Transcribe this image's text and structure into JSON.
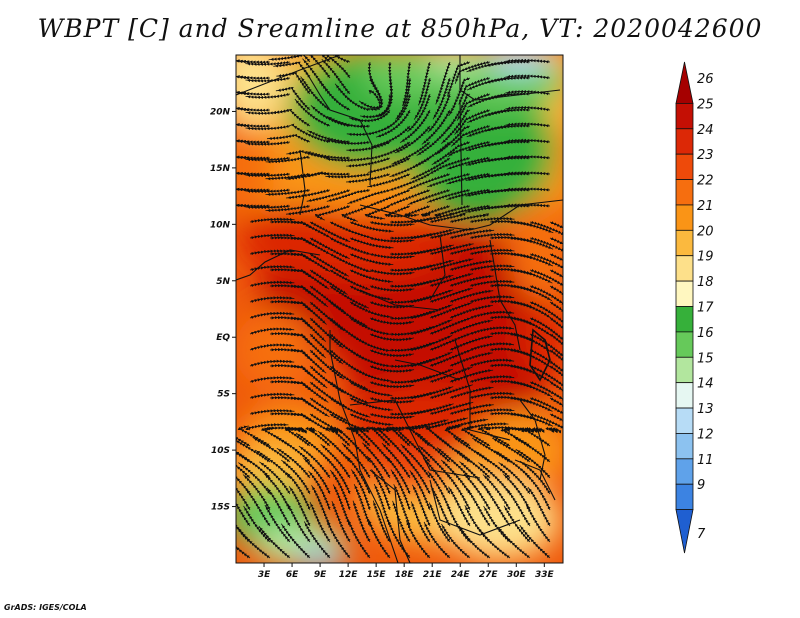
{
  "title": "WBPT [C] and Sreamline at 850hPa, VT: 2020042600",
  "credit": "GrADS: IGES/COLA",
  "map": {
    "lon_range": [
      0,
      35
    ],
    "lat_range": [
      -20,
      25
    ],
    "lat_ticks": [
      {
        "value": 20,
        "label": "20N"
      },
      {
        "value": 15,
        "label": "15N"
      },
      {
        "value": 10,
        "label": "10N"
      },
      {
        "value": 5,
        "label": "5N"
      },
      {
        "value": 0,
        "label": "EQ"
      },
      {
        "value": -5,
        "label": "5S"
      },
      {
        "value": -10,
        "label": "10S"
      },
      {
        "value": -15,
        "label": "15S"
      }
    ],
    "lon_ticks": [
      {
        "value": 3,
        "label": "3E"
      },
      {
        "value": 6,
        "label": "6E"
      },
      {
        "value": 9,
        "label": "9E"
      },
      {
        "value": 12,
        "label": "12E"
      },
      {
        "value": 15,
        "label": "15E"
      },
      {
        "value": 18,
        "label": "18E"
      },
      {
        "value": 21,
        "label": "21E"
      },
      {
        "value": 24,
        "label": "24E"
      },
      {
        "value": 27,
        "label": "27E"
      },
      {
        "value": 30,
        "label": "30E"
      },
      {
        "value": 33,
        "label": "33E"
      }
    ]
  },
  "colorbar": {
    "levels": [
      {
        "label": "26",
        "color": "#a50000"
      },
      {
        "label": "25",
        "color": "#c40f04"
      },
      {
        "label": "24",
        "color": "#dc2806"
      },
      {
        "label": "23",
        "color": "#ee4a0a"
      },
      {
        "label": "22",
        "color": "#f66e0f"
      },
      {
        "label": "21",
        "color": "#fa9416"
      },
      {
        "label": "20",
        "color": "#fbb93e"
      },
      {
        "label": "19",
        "color": "#fde08a"
      },
      {
        "label": "18",
        "color": "#fff7c0"
      },
      {
        "label": "17",
        "color": "#36b03a"
      },
      {
        "label": "16",
        "color": "#66c95a"
      },
      {
        "label": "15",
        "color": "#b2e69e"
      },
      {
        "label": "14",
        "color": "#e6f7f2"
      },
      {
        "label": "13",
        "color": "#b7dcf6"
      },
      {
        "label": "12",
        "color": "#8cc2f0"
      },
      {
        "label": "11",
        "color": "#5fa2ea"
      },
      {
        "label": "9",
        "color": "#3c83e2"
      },
      {
        "label": "7",
        "color": "#1f5fd1"
      }
    ]
  }
}
